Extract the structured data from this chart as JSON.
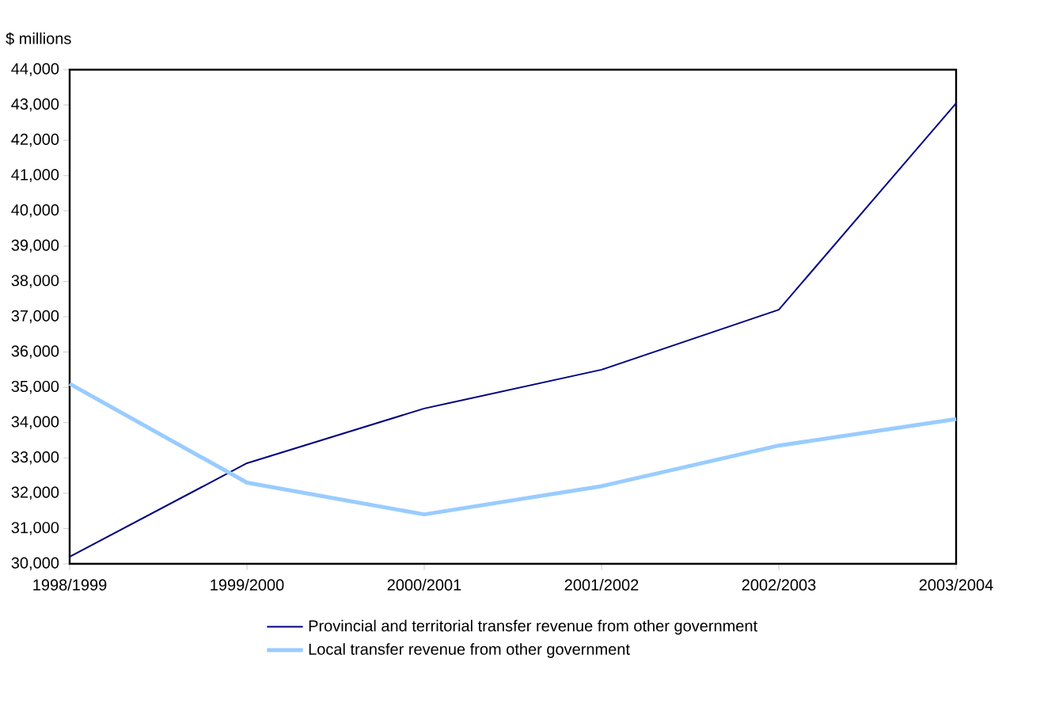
{
  "chart_data": {
    "type": "line",
    "ylabel": "$ millions",
    "categories": [
      "1998/1999",
      "1999/2000",
      "2000/2001",
      "2001/2002",
      "2002/2003",
      "2003/2004"
    ],
    "series": [
      {
        "name": "Provincial and territorial transfer revenue from other government",
        "color": "#000080",
        "values": [
          30200,
          32850,
          34400,
          35500,
          37200,
          43050
        ]
      },
      {
        "name": "Local transfer revenue from other government",
        "color": "#99ccff",
        "values": [
          35100,
          32300,
          31400,
          32200,
          33350,
          34100
        ]
      }
    ],
    "ylim": [
      30000,
      44000
    ],
    "yticks": [
      {
        "value": 30000,
        "label": "30,000"
      },
      {
        "value": 31000,
        "label": "31,000"
      },
      {
        "value": 32000,
        "label": "32,000"
      },
      {
        "value": 33000,
        "label": "33,000"
      },
      {
        "value": 34000,
        "label": "34,000"
      },
      {
        "value": 35000,
        "label": "35,000"
      },
      {
        "value": 36000,
        "label": "36,000"
      },
      {
        "value": 37000,
        "label": "37,000"
      },
      {
        "value": 38000,
        "label": "38,000"
      },
      {
        "value": 39000,
        "label": "39,000"
      },
      {
        "value": 40000,
        "label": "40,000"
      },
      {
        "value": 41000,
        "label": "41,000"
      },
      {
        "value": 42000,
        "label": "42,000"
      },
      {
        "value": 43000,
        "label": "43,000"
      },
      {
        "value": 44000,
        "label": "44,000"
      }
    ],
    "grid": false,
    "legend": "bottom"
  }
}
